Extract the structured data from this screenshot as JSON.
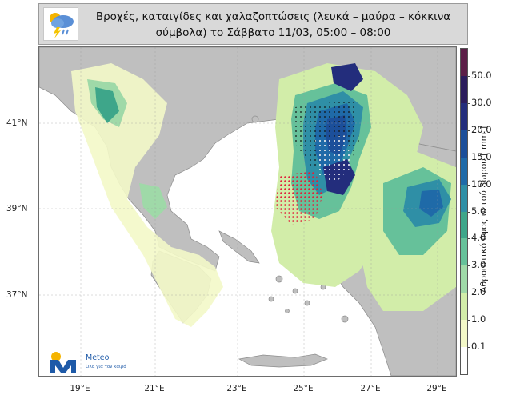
{
  "title": {
    "line1": "Βροχές, καταιγίδες και χαλαζοπτώσεις (λευκά – μαύρα – κόκκινα",
    "line2": "σύμβολα) το Σάββατο 11/03, 05:00 – 08:00"
  },
  "map": {
    "lat_labels": [
      "41°N",
      "39°N",
      "37°N"
    ],
    "lon_labels": [
      "19°E",
      "21°E",
      "23°E",
      "25°E",
      "27°E",
      "29°E"
    ],
    "land_color": "#bfbfbf",
    "sea_color": "#ffffff"
  },
  "colorbar": {
    "title": "Αθροιστικό ύψος υετού 3ωρου [ mm ]",
    "ticks": [
      "50.0",
      "30.0",
      "20.0",
      "15.0",
      "10.0",
      "5.0",
      "4.0",
      "3.0",
      "2.0",
      "1.0",
      "0.1"
    ],
    "colors": [
      "#5b1e47",
      "#2b1c5c",
      "#232d7c",
      "#1c4f9a",
      "#1f6aa8",
      "#2f8fa6",
      "#3ea68a",
      "#66c19a",
      "#9fd9a8",
      "#d2eda9",
      "#f3f8c8",
      "#ffffff"
    ]
  },
  "branding": {
    "weather_icon": "rain-cloud-lightning-icon",
    "logo_name": "Meteo",
    "logo_tagline": "Όλα για τον καιρό"
  }
}
